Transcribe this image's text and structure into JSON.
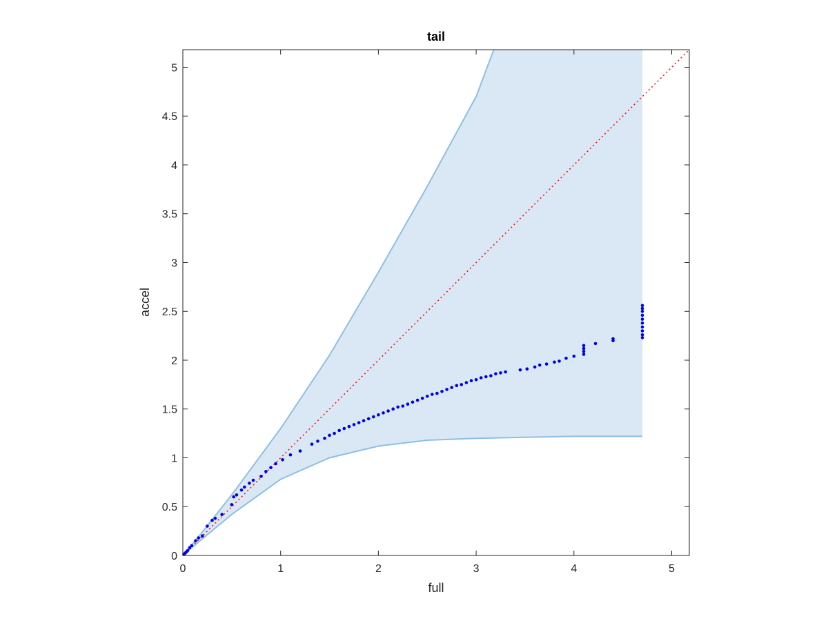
{
  "chart_data": {
    "type": "scatter",
    "title": "tail",
    "xlabel": "full",
    "ylabel": "accel",
    "xlim": [
      0,
      5.18
    ],
    "ylim": [
      0,
      5.18
    ],
    "xticks": [
      "0",
      "1",
      "2",
      "3",
      "4",
      "5"
    ],
    "yticks": [
      "0",
      "0.5",
      "1",
      "1.5",
      "2",
      "2.5",
      "3",
      "3.5",
      "4",
      "4.5",
      "5"
    ],
    "grid": false,
    "colors": {
      "points": "#0000e6",
      "band_fill": "#d9e8f4",
      "band_edge": "#8dbfe2",
      "reference": "#ff0000",
      "axes": "#262626"
    },
    "band": {
      "upper": [
        [
          0,
          0
        ],
        [
          0.2,
          0.24
        ],
        [
          0.5,
          0.62
        ],
        [
          1.0,
          1.3
        ],
        [
          1.5,
          2.05
        ],
        [
          2.0,
          2.9
        ],
        [
          2.5,
          3.78
        ],
        [
          3.0,
          4.7
        ],
        [
          3.18,
          5.18
        ],
        [
          4.7,
          5.18
        ]
      ],
      "lower": [
        [
          0,
          0
        ],
        [
          0.2,
          0.17
        ],
        [
          0.5,
          0.42
        ],
        [
          1.0,
          0.78
        ],
        [
          1.5,
          1.0
        ],
        [
          2.0,
          1.12
        ],
        [
          2.5,
          1.18
        ],
        [
          3.0,
          1.2
        ],
        [
          3.5,
          1.21
        ],
        [
          4.0,
          1.22
        ],
        [
          4.7,
          1.22
        ]
      ],
      "x_end": 4.7
    },
    "reference_line": [
      [
        0,
        0
      ],
      [
        5.18,
        5.18
      ]
    ],
    "series": [
      {
        "points": [
          [
            0.01,
            0.01
          ],
          [
            0.02,
            0.02
          ],
          [
            0.03,
            0.03
          ],
          [
            0.04,
            0.04
          ],
          [
            0.05,
            0.05
          ],
          [
            0.07,
            0.08
          ],
          [
            0.09,
            0.1
          ],
          [
            0.13,
            0.15
          ],
          [
            0.16,
            0.18
          ],
          [
            0.2,
            0.2
          ],
          [
            0.25,
            0.3
          ],
          [
            0.3,
            0.36
          ],
          [
            0.33,
            0.38
          ],
          [
            0.4,
            0.42
          ],
          [
            0.5,
            0.52
          ],
          [
            0.52,
            0.6
          ],
          [
            0.55,
            0.62
          ],
          [
            0.6,
            0.67
          ],
          [
            0.63,
            0.7
          ],
          [
            0.68,
            0.74
          ],
          [
            0.72,
            0.77
          ],
          [
            0.8,
            0.81
          ],
          [
            0.85,
            0.86
          ],
          [
            0.9,
            0.9
          ],
          [
            0.95,
            0.94
          ],
          [
            1.02,
            0.98
          ],
          [
            1.1,
            1.03
          ],
          [
            1.2,
            1.07
          ],
          [
            1.32,
            1.14
          ],
          [
            1.38,
            1.17
          ],
          [
            1.45,
            1.2
          ],
          [
            1.5,
            1.23
          ],
          [
            1.55,
            1.25
          ],
          [
            1.6,
            1.28
          ],
          [
            1.65,
            1.3
          ],
          [
            1.7,
            1.32
          ],
          [
            1.75,
            1.34
          ],
          [
            1.8,
            1.36
          ],
          [
            1.85,
            1.38
          ],
          [
            1.9,
            1.4
          ],
          [
            1.95,
            1.42
          ],
          [
            2.0,
            1.44
          ],
          [
            2.05,
            1.46
          ],
          [
            2.1,
            1.48
          ],
          [
            2.15,
            1.5
          ],
          [
            2.2,
            1.52
          ],
          [
            2.25,
            1.53
          ],
          [
            2.3,
            1.55
          ],
          [
            2.35,
            1.57
          ],
          [
            2.4,
            1.59
          ],
          [
            2.45,
            1.61
          ],
          [
            2.5,
            1.63
          ],
          [
            2.55,
            1.65
          ],
          [
            2.6,
            1.66
          ],
          [
            2.65,
            1.68
          ],
          [
            2.7,
            1.7
          ],
          [
            2.75,
            1.72
          ],
          [
            2.8,
            1.74
          ],
          [
            2.85,
            1.75
          ],
          [
            2.9,
            1.77
          ],
          [
            2.95,
            1.79
          ],
          [
            3.0,
            1.8
          ],
          [
            3.05,
            1.82
          ],
          [
            3.1,
            1.83
          ],
          [
            3.15,
            1.84
          ],
          [
            3.2,
            1.86
          ],
          [
            3.25,
            1.87
          ],
          [
            3.3,
            1.88
          ],
          [
            3.45,
            1.9
          ],
          [
            3.52,
            1.91
          ],
          [
            3.6,
            1.93
          ],
          [
            3.65,
            1.95
          ],
          [
            3.72,
            1.96
          ],
          [
            3.8,
            1.98
          ],
          [
            3.85,
            1.99
          ],
          [
            3.92,
            2.02
          ],
          [
            4.0,
            2.04
          ],
          [
            4.1,
            2.06
          ],
          [
            4.1,
            2.09
          ],
          [
            4.1,
            2.12
          ],
          [
            4.1,
            2.15
          ],
          [
            4.22,
            2.17
          ],
          [
            4.4,
            2.2
          ],
          [
            4.4,
            2.22
          ],
          [
            4.7,
            2.23
          ],
          [
            4.7,
            2.26
          ],
          [
            4.7,
            2.3
          ],
          [
            4.7,
            2.34
          ],
          [
            4.7,
            2.38
          ],
          [
            4.7,
            2.42
          ],
          [
            4.7,
            2.46
          ],
          [
            4.7,
            2.5
          ],
          [
            4.7,
            2.53
          ],
          [
            4.7,
            2.56
          ]
        ]
      }
    ]
  }
}
